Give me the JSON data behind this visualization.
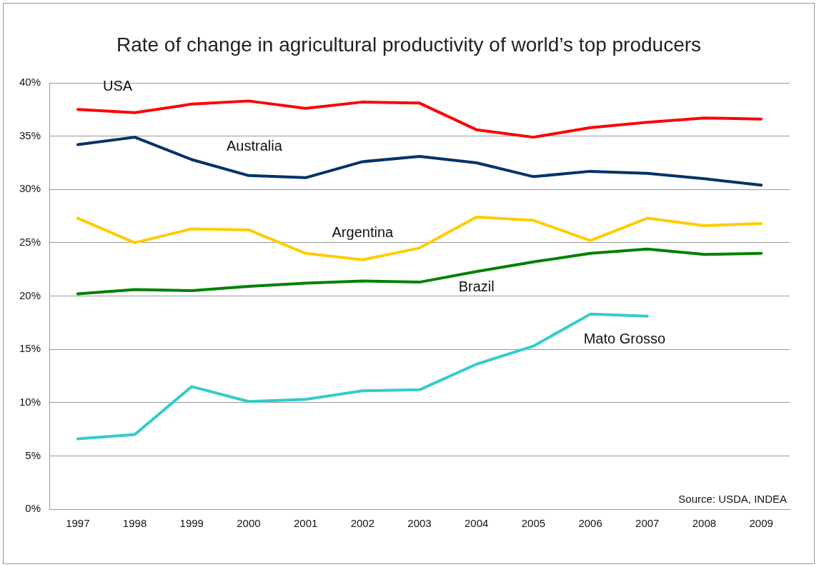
{
  "chart_data": {
    "type": "line",
    "title": "Rate of change in agricultural productivity of world’s top producers",
    "categories": [
      "1997",
      "1998",
      "1999",
      "2000",
      "2001",
      "2002",
      "2003",
      "2004",
      "2005",
      "2006",
      "2007",
      "2008",
      "2009"
    ],
    "series": [
      {
        "name": "USA",
        "color": "#ff0000",
        "values": [
          37.5,
          37.2,
          38.0,
          38.3,
          37.6,
          38.2,
          38.1,
          35.6,
          34.9,
          35.8,
          36.3,
          36.7,
          36.6
        ]
      },
      {
        "name": "Australia",
        "color": "#003366",
        "values": [
          34.2,
          34.9,
          32.8,
          31.3,
          31.1,
          32.6,
          33.1,
          32.5,
          31.2,
          31.7,
          31.5,
          31.0,
          30.4
        ]
      },
      {
        "name": "Argentina",
        "color": "#ffcc00",
        "values": [
          27.3,
          25.0,
          26.3,
          26.2,
          24.0,
          23.4,
          24.5,
          27.4,
          27.1,
          25.2,
          27.3,
          26.6,
          26.8
        ]
      },
      {
        "name": "Brazil",
        "color": "#008000",
        "values": [
          20.2,
          20.6,
          20.5,
          20.9,
          21.2,
          21.4,
          21.3,
          22.3,
          23.2,
          24.0,
          24.4,
          23.9,
          24.0
        ]
      },
      {
        "name": "Mato Grosso",
        "color": "#33cccc",
        "values": [
          6.6,
          7.0,
          11.5,
          10.1,
          10.3,
          11.1,
          11.2,
          13.6,
          15.3,
          18.3,
          18.1,
          null,
          null
        ]
      }
    ],
    "ylim": [
      0,
      40
    ],
    "yticks": [
      {
        "value": 0,
        "label": "0%"
      },
      {
        "value": 5,
        "label": "5%"
      },
      {
        "value": 10,
        "label": "10%"
      },
      {
        "value": 15,
        "label": "15%"
      },
      {
        "value": 20,
        "label": "20%"
      },
      {
        "value": 25,
        "label": "25%"
      },
      {
        "value": 30,
        "label": "30%"
      },
      {
        "value": 35,
        "label": "35%"
      },
      {
        "value": 40,
        "label": "40%"
      }
    ],
    "grid": "y",
    "legend": false,
    "marker": "none",
    "line_style": "solid",
    "annotations": [
      "Source: USDA, INDEA"
    ]
  }
}
